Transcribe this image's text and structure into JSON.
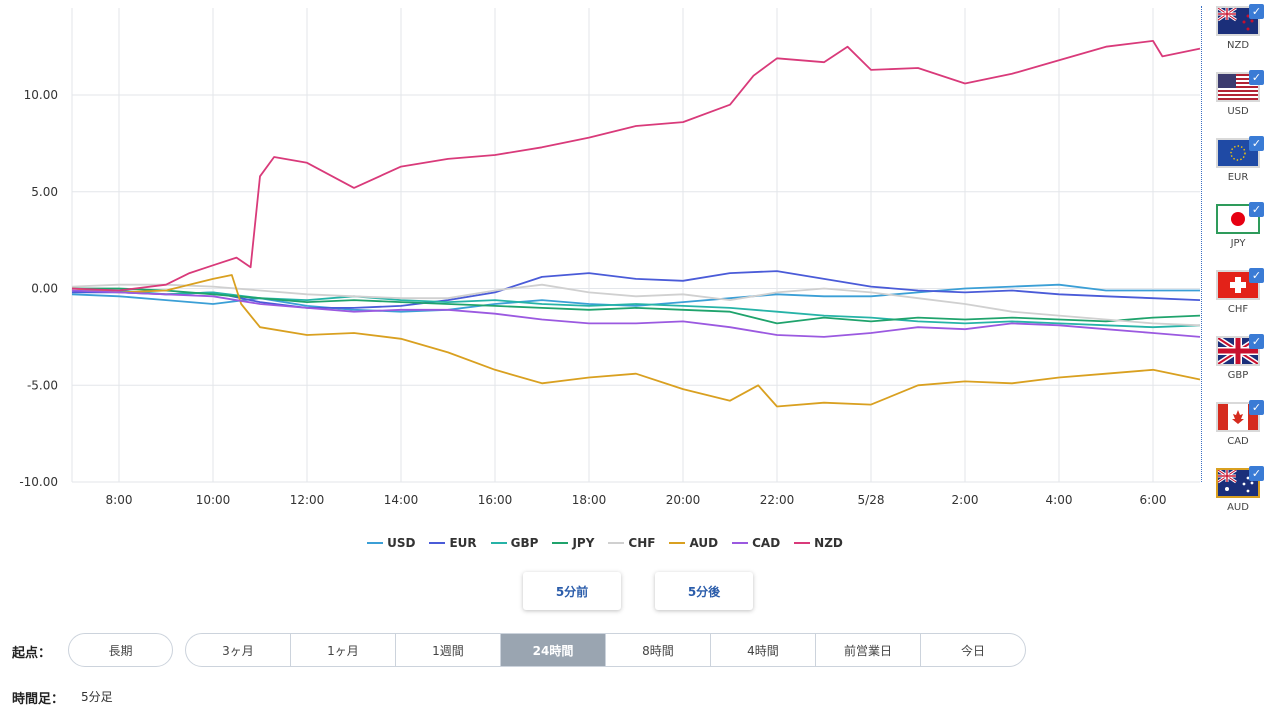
{
  "chart_data": {
    "type": "line",
    "ylim": [
      -10,
      14.5
    ],
    "x_range": [
      7.0,
      31.0
    ],
    "yticks": [
      "10.00",
      "5.00",
      "0.00",
      "-5.00",
      "-10.00"
    ],
    "ytick_values": [
      10,
      5,
      0,
      -5,
      -10
    ],
    "xticks": [
      "8:00",
      "10:00",
      "12:00",
      "14:00",
      "16:00",
      "18:00",
      "20:00",
      "22:00",
      "5/28",
      "2:00",
      "4:00",
      "6:00"
    ],
    "xtick_values": [
      8,
      10,
      12,
      14,
      16,
      18,
      20,
      22,
      24,
      26,
      28,
      30
    ],
    "grid": true,
    "legend_position": "bottom",
    "series": [
      {
        "name": "USD",
        "color": "#3b9fd6",
        "x": [
          7.0,
          8.0,
          9.0,
          10.0,
          11.0,
          12.0,
          13.0,
          14.0,
          15.0,
          16.0,
          17.0,
          18.0,
          19.0,
          20.0,
          21.0,
          22.0,
          23.0,
          24.0,
          25.0,
          26.0,
          27.0,
          28.0,
          29.0,
          30.0,
          31.0
        ],
        "y": [
          -0.3,
          -0.4,
          -0.6,
          -0.8,
          -0.5,
          -0.9,
          -1.1,
          -1.2,
          -1.1,
          -0.8,
          -0.6,
          -0.8,
          -0.9,
          -0.7,
          -0.5,
          -0.3,
          -0.4,
          -0.4,
          -0.2,
          0.0,
          0.1,
          0.2,
          -0.1,
          -0.1,
          -0.1
        ]
      },
      {
        "name": "EUR",
        "color": "#4a5bd8",
        "x": [
          7.0,
          8.0,
          9.0,
          10.0,
          11.0,
          12.0,
          13.0,
          14.0,
          15.0,
          16.0,
          17.0,
          18.0,
          19.0,
          20.0,
          21.0,
          22.0,
          23.0,
          24.0,
          25.0,
          26.0,
          27.0,
          28.0,
          29.0,
          30.0,
          31.0
        ],
        "y": [
          -0.2,
          -0.2,
          -0.3,
          -0.2,
          -0.7,
          -1.0,
          -1.0,
          -0.9,
          -0.6,
          -0.2,
          0.6,
          0.8,
          0.5,
          0.4,
          0.8,
          0.9,
          0.5,
          0.1,
          -0.1,
          -0.2,
          -0.1,
          -0.3,
          -0.4,
          -0.5,
          -0.6
        ]
      },
      {
        "name": "GBP",
        "color": "#26b3a7",
        "x": [
          7.0,
          8.0,
          9.0,
          10.0,
          11.0,
          12.0,
          13.0,
          14.0,
          15.0,
          16.0,
          17.0,
          18.0,
          19.0,
          20.0,
          21.0,
          22.0,
          23.0,
          24.0,
          25.0,
          26.0,
          27.0,
          28.0,
          29.0,
          30.0,
          31.0
        ],
        "y": [
          0.0,
          -0.1,
          -0.3,
          -0.2,
          -0.5,
          -0.6,
          -0.4,
          -0.6,
          -0.7,
          -0.6,
          -0.8,
          -0.9,
          -0.8,
          -0.9,
          -1.0,
          -1.2,
          -1.4,
          -1.5,
          -1.7,
          -1.8,
          -1.7,
          -1.8,
          -1.9,
          -2.0,
          -1.9
        ]
      },
      {
        "name": "JPY",
        "color": "#1fa36c",
        "x": [
          7.0,
          8.0,
          9.0,
          10.0,
          11.0,
          12.0,
          13.0,
          14.0,
          15.0,
          16.0,
          17.0,
          18.0,
          19.0,
          20.0,
          21.0,
          22.0,
          23.0,
          24.0,
          25.0,
          26.0,
          27.0,
          28.0,
          29.0,
          30.0,
          31.0
        ],
        "y": [
          0.0,
          0.0,
          -0.1,
          -0.3,
          -0.5,
          -0.7,
          -0.6,
          -0.7,
          -0.8,
          -0.9,
          -1.0,
          -1.1,
          -1.0,
          -1.1,
          -1.2,
          -1.8,
          -1.5,
          -1.7,
          -1.5,
          -1.6,
          -1.5,
          -1.6,
          -1.7,
          -1.5,
          -1.4
        ]
      },
      {
        "name": "CHF",
        "color": "#d0d0d0",
        "x": [
          7.0,
          8.0,
          9.0,
          10.0,
          11.0,
          12.0,
          13.0,
          14.0,
          15.0,
          16.0,
          17.0,
          18.0,
          19.0,
          20.0,
          21.0,
          22.0,
          23.0,
          24.0,
          25.0,
          26.0,
          27.0,
          28.0,
          29.0,
          30.0,
          31.0
        ],
        "y": [
          0.1,
          0.2,
          0.2,
          0.1,
          -0.1,
          -0.3,
          -0.4,
          -0.5,
          -0.5,
          -0.1,
          0.2,
          -0.2,
          -0.4,
          -0.3,
          -0.6,
          -0.2,
          0.0,
          -0.2,
          -0.5,
          -0.8,
          -1.2,
          -1.4,
          -1.6,
          -1.8,
          -1.9
        ]
      },
      {
        "name": "AUD",
        "color": "#d9a020",
        "x": [
          7.0,
          8.0,
          9.0,
          10.0,
          10.4,
          10.6,
          11.0,
          12.0,
          13.0,
          14.0,
          15.0,
          16.0,
          17.0,
          18.0,
          19.0,
          20.0,
          21.0,
          21.6,
          22.0,
          23.0,
          24.0,
          25.0,
          26.0,
          27.0,
          28.0,
          29.0,
          30.0,
          31.0
        ],
        "y": [
          0.0,
          -0.2,
          -0.1,
          0.5,
          0.7,
          -0.8,
          -2.0,
          -2.4,
          -2.3,
          -2.6,
          -3.3,
          -4.2,
          -4.9,
          -4.6,
          -4.4,
          -5.2,
          -5.8,
          -5.0,
          -6.1,
          -5.9,
          -6.0,
          -5.0,
          -4.8,
          -4.9,
          -4.6,
          -4.4,
          -4.2,
          -4.7
        ]
      },
      {
        "name": "CAD",
        "color": "#9b59e0",
        "x": [
          7.0,
          8.0,
          9.0,
          10.0,
          11.0,
          12.0,
          13.0,
          14.0,
          15.0,
          16.0,
          17.0,
          18.0,
          19.0,
          20.0,
          21.0,
          22.0,
          23.0,
          24.0,
          25.0,
          26.0,
          27.0,
          28.0,
          29.0,
          30.0,
          31.0
        ],
        "y": [
          -0.1,
          -0.2,
          -0.3,
          -0.4,
          -0.8,
          -1.0,
          -1.2,
          -1.1,
          -1.1,
          -1.3,
          -1.6,
          -1.8,
          -1.8,
          -1.7,
          -2.0,
          -2.4,
          -2.5,
          -2.3,
          -2.0,
          -2.1,
          -1.8,
          -1.9,
          -2.1,
          -2.3,
          -2.5
        ]
      },
      {
        "name": "NZD",
        "color": "#d93a7a",
        "x": [
          7.0,
          8.0,
          9.0,
          9.5,
          10.0,
          10.5,
          10.8,
          11.0,
          11.3,
          12.0,
          13.0,
          14.0,
          15.0,
          16.0,
          17.0,
          18.0,
          19.0,
          20.0,
          21.0,
          21.5,
          22.0,
          23.0,
          23.5,
          24.0,
          25.0,
          26.0,
          27.0,
          28.0,
          29.0,
          30.0,
          30.2,
          31.0
        ],
        "y": [
          0.0,
          -0.1,
          0.2,
          0.8,
          1.2,
          1.6,
          1.1,
          5.8,
          6.8,
          6.5,
          5.2,
          6.3,
          6.7,
          6.9,
          7.3,
          7.8,
          8.4,
          8.6,
          9.5,
          11.0,
          11.9,
          11.7,
          12.5,
          11.3,
          11.4,
          10.6,
          11.1,
          11.8,
          12.5,
          12.8,
          12.0,
          12.4
        ]
      }
    ]
  },
  "flags": [
    {
      "code": "NZD",
      "checked": "✓"
    },
    {
      "code": "USD",
      "checked": "✓"
    },
    {
      "code": "EUR",
      "checked": "✓"
    },
    {
      "code": "JPY",
      "checked": "✓"
    },
    {
      "code": "CHF",
      "checked": "✓"
    },
    {
      "code": "GBP",
      "checked": "✓"
    },
    {
      "code": "CAD",
      "checked": "✓"
    },
    {
      "code": "AUD",
      "checked": "✓"
    }
  ],
  "controls": {
    "prev_label": "5分前",
    "next_label": "5分後",
    "start_label": "起点：",
    "long_term": "長期",
    "ranges": [
      "3ヶ月",
      "1ヶ月",
      "1週間",
      "24時間",
      "8時間",
      "4時間",
      "前営業日",
      "今日"
    ],
    "active_range": "24時間",
    "timeframe_label": "時間足：",
    "timeframe_value": "5分足"
  }
}
